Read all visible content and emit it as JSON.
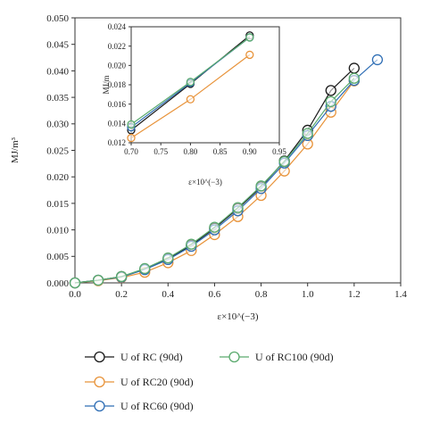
{
  "chart_data": [
    {
      "type": "line",
      "ylabel": "MJ/m³",
      "xlabel": "ε×10^(−3)",
      "xlim": [
        0.0,
        1.4
      ],
      "ylim": [
        0.0,
        0.05
      ],
      "x_ticks": [
        "0.0",
        "0.2",
        "0.4",
        "0.6",
        "0.8",
        "1.0",
        "1.2",
        "1.4"
      ],
      "y_ticks": [
        "0.000",
        "0.005",
        "0.010",
        "0.015",
        "0.020",
        "0.025",
        "0.030",
        "0.035",
        "0.040",
        "0.045",
        "0.050"
      ],
      "grid": false,
      "legend_position": "bottom",
      "series": [
        {
          "name": "U of RC (90d)",
          "color": "#1a1a1a",
          "x": [
            0,
            0.1,
            0.2,
            0.3,
            0.4,
            0.5,
            0.6,
            0.7,
            0.8,
            0.9,
            1.0,
            1.1,
            1.2
          ],
          "y": [
            0,
            0.0005,
            0.0012,
            0.0025,
            0.0045,
            0.0071,
            0.0103,
            0.014,
            0.0181,
            0.023,
            0.0288,
            0.0363,
            0.0405
          ]
        },
        {
          "name": "U of RC20 (90d)",
          "color": "#e8933a",
          "x": [
            0,
            0.1,
            0.2,
            0.3,
            0.4,
            0.5,
            0.6,
            0.7,
            0.8,
            0.9,
            1.0,
            1.1,
            1.2
          ],
          "y": [
            0,
            0.0004,
            0.001,
            0.002,
            0.0038,
            0.0061,
            0.0091,
            0.0125,
            0.0165,
            0.0211,
            0.0262,
            0.0322,
            0.0381
          ]
        },
        {
          "name": "U of RC60 (90d)",
          "color": "#2f6eb5",
          "x": [
            0,
            0.1,
            0.2,
            0.3,
            0.4,
            0.5,
            0.6,
            0.7,
            0.8,
            0.9,
            1.0,
            1.1,
            1.2,
            1.3
          ],
          "y": [
            0,
            0.0005,
            0.0011,
            0.0025,
            0.0044,
            0.0069,
            0.01,
            0.0136,
            0.0178,
            0.0226,
            0.0278,
            0.0333,
            0.0382,
            0.0421
          ]
        },
        {
          "name": "U of RC100 (90d)",
          "color": "#5aaa6e",
          "x": [
            0,
            0.1,
            0.2,
            0.3,
            0.4,
            0.5,
            0.6,
            0.7,
            0.8,
            0.9,
            1.0,
            1.1,
            1.2
          ],
          "y": [
            0,
            0.0005,
            0.0012,
            0.0027,
            0.0047,
            0.0073,
            0.0105,
            0.0142,
            0.0183,
            0.0229,
            0.0282,
            0.0342,
            0.0386
          ]
        }
      ]
    },
    {
      "type": "line",
      "ylabel": "MJ/m",
      "xlabel": "ε×10^(−3)",
      "xlim": [
        0.7,
        0.95
      ],
      "ylim": [
        0.012,
        0.024
      ],
      "x_ticks": [
        "0.70",
        "0.75",
        "0.80",
        "0.85",
        "0.90",
        "0.95"
      ],
      "y_ticks": [
        "0.012",
        "0.014",
        "0.016",
        "0.018",
        "0.020",
        "0.022",
        "0.024"
      ],
      "grid": false,
      "series": [
        {
          "name": "U of RC (90d)",
          "color": "#1a1a1a",
          "x": [
            0.7,
            0.8,
            0.9
          ],
          "y": [
            0.0133,
            0.0181,
            0.0231
          ]
        },
        {
          "name": "U of RC60 (90d)",
          "color": "#2f6eb5",
          "x": [
            0.7,
            0.8,
            0.9
          ],
          "y": [
            0.0136,
            0.0182,
            0.0229
          ]
        },
        {
          "name": "U of RC100 (90d)",
          "color": "#5aaa6e",
          "x": [
            0.7,
            0.8,
            0.9
          ],
          "y": [
            0.0139,
            0.0183,
            0.0229
          ]
        },
        {
          "name": "U of RC20 (90d)",
          "color": "#e8933a",
          "x": [
            0.7,
            0.8,
            0.9
          ],
          "y": [
            0.0125,
            0.0165,
            0.0211
          ]
        }
      ]
    }
  ],
  "legend": [
    {
      "label": "U of RC (90d)",
      "color": "#1a1a1a"
    },
    {
      "label": "U of RC100 (90d)",
      "color": "#5aaa6e"
    },
    {
      "label": "U of RC20 (90d)",
      "color": "#e8933a"
    },
    {
      "label": "U of RC60 (90d)",
      "color": "#2f6eb5"
    }
  ]
}
